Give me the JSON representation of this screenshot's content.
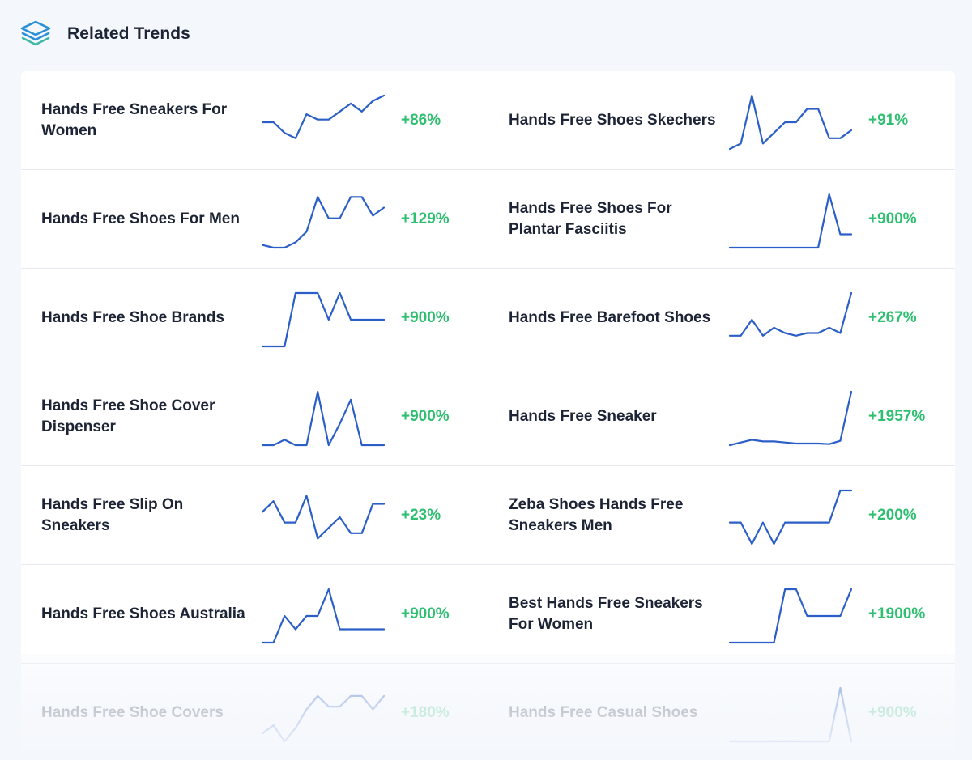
{
  "header": {
    "title": "Related Trends",
    "icon": "layers-icon",
    "icon_color": "#2b8fd6"
  },
  "colors": {
    "accent": "#2b5fc7",
    "positive": "#2fbf71"
  },
  "trends": [
    {
      "name": "Hands Free Sneakers For Women",
      "change": "+86%",
      "spark": [
        0.5,
        0.5,
        0.3,
        0.2,
        0.65,
        0.55,
        0.55,
        0.7,
        0.85,
        0.7,
        0.9,
        1.0
      ]
    },
    {
      "name": "Hands Free Shoes Skechers",
      "change": "+91%",
      "spark": [
        0.0,
        0.1,
        1.0,
        0.1,
        0.3,
        0.5,
        0.5,
        0.75,
        0.75,
        0.2,
        0.2,
        0.35
      ]
    },
    {
      "name": "Hands Free Shoes For Men",
      "change": "+129%",
      "spark": [
        0.05,
        0.0,
        0.0,
        0.1,
        0.3,
        0.95,
        0.55,
        0.55,
        0.95,
        0.95,
        0.6,
        0.75
      ]
    },
    {
      "name": "Hands Free Shoes For Plantar Fasciitis",
      "change": "+900%",
      "spark": [
        0.0,
        0.0,
        0.0,
        0.0,
        0.0,
        0.0,
        0.0,
        0.0,
        0.0,
        1.0,
        0.25,
        0.25
      ]
    },
    {
      "name": "Hands Free Shoe Brands",
      "change": "+900%",
      "spark": [
        0.0,
        0.0,
        0.0,
        1.0,
        1.0,
        1.0,
        0.5,
        1.0,
        0.5,
        0.5,
        0.5,
        0.5
      ]
    },
    {
      "name": "Hands Free Barefoot Shoes",
      "change": "+267%",
      "spark": [
        0.2,
        0.2,
        0.5,
        0.2,
        0.35,
        0.25,
        0.2,
        0.25,
        0.25,
        0.35,
        0.25,
        1.0
      ]
    },
    {
      "name": "Hands Free Shoe Cover Dispenser",
      "change": "+900%",
      "spark": [
        0.0,
        0.0,
        0.1,
        0.0,
        0.0,
        1.0,
        0.0,
        0.4,
        0.85,
        0.0,
        0.0,
        0.0
      ]
    },
    {
      "name": "Hands Free Sneaker",
      "change": "+1957%",
      "spark": [
        0.0,
        0.05,
        0.1,
        0.07,
        0.07,
        0.05,
        0.03,
        0.03,
        0.03,
        0.02,
        0.08,
        1.0
      ]
    },
    {
      "name": "Hands Free Slip On Sneakers",
      "change": "+23%",
      "spark": [
        0.6,
        0.8,
        0.4,
        0.4,
        0.9,
        0.1,
        0.3,
        0.5,
        0.2,
        0.2,
        0.75,
        0.75
      ]
    },
    {
      "name": "Zeba Shoes Hands Free Sneakers Men",
      "change": "+200%",
      "spark": [
        0.4,
        0.4,
        0.0,
        0.4,
        0.0,
        0.4,
        0.4,
        0.4,
        0.4,
        0.4,
        1.0,
        1.0
      ]
    },
    {
      "name": "Hands Free Shoes Australia",
      "change": "+900%",
      "spark": [
        0.0,
        0.0,
        0.5,
        0.25,
        0.5,
        0.5,
        1.0,
        0.25,
        0.25,
        0.25,
        0.25,
        0.25
      ]
    },
    {
      "name": "Best Hands Free Sneakers For Women",
      "change": "+1900%",
      "spark": [
        0.0,
        0.0,
        0.0,
        0.0,
        0.0,
        1.0,
        1.0,
        0.5,
        0.5,
        0.5,
        0.5,
        1.0
      ]
    },
    {
      "name": "Hands Free Shoe Covers",
      "change": "+180%",
      "spark": [
        0.15,
        0.3,
        0.0,
        0.25,
        0.6,
        0.85,
        0.65,
        0.65,
        0.85,
        0.85,
        0.6,
        0.85
      ]
    },
    {
      "name": "Hands Free Casual Shoes",
      "change": "+900%",
      "spark": [
        0.0,
        0.0,
        0.0,
        0.0,
        0.0,
        0.0,
        0.0,
        0.0,
        0.0,
        0.0,
        1.0,
        0.0
      ]
    }
  ]
}
